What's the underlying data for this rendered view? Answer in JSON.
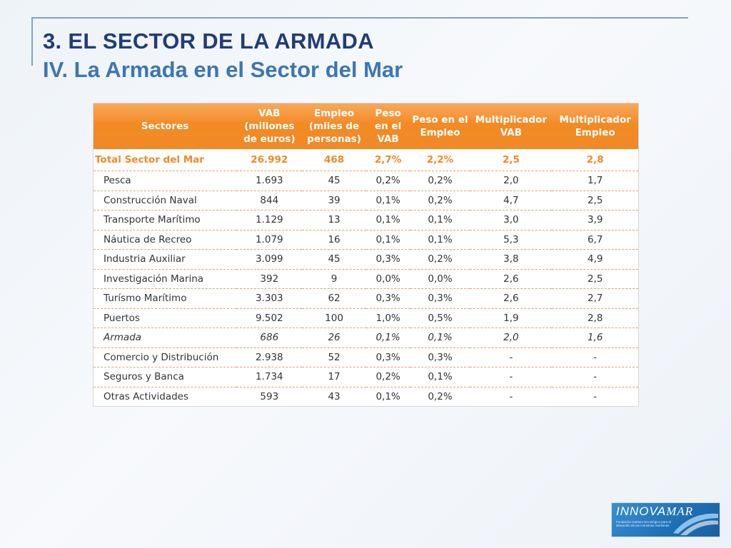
{
  "slide": {
    "title": "3. EL SECTOR DE LA ARMADA",
    "subtitle": "IV. La Armada en el Sector del Mar"
  },
  "table": {
    "headers": [
      "Sectores",
      "VAB (millones de euros)",
      "Empleo (miles de personas)",
      "Peso en el VAB",
      "Peso en el Empleo",
      "Multiplicador VAB",
      "Multiplicador Empleo"
    ],
    "total": [
      "Total Sector del Mar",
      "26.992",
      "468",
      "2,7%",
      "2,2%",
      "2,5",
      "2,8"
    ],
    "rows": [
      [
        "Pesca",
        "1.693",
        "45",
        "0,2%",
        "0,2%",
        "2,0",
        "1,7"
      ],
      [
        "Construcción Naval",
        "844",
        "39",
        "0,1%",
        "0,2%",
        "4,7",
        "2,5"
      ],
      [
        "Transporte Marítimo",
        "1.129",
        "13",
        "0,1%",
        "0,1%",
        "3,0",
        "3,9"
      ],
      [
        "Náutica de Recreo",
        "1.079",
        "16",
        "0,1%",
        "0,1%",
        "5,3",
        "6,7"
      ],
      [
        "Industria Auxiliar",
        "3.099",
        "45",
        "0,3%",
        "0,2%",
        "3,8",
        "4,9"
      ],
      [
        "Investigación Marina",
        "392",
        "9",
        "0,0%",
        "0,0%",
        "2,6",
        "2,5"
      ],
      [
        "Turísmo Marítimo",
        "3.303",
        "62",
        "0,3%",
        "0,3%",
        "2,6",
        "2,7"
      ],
      [
        "Puertos",
        "9.502",
        "100",
        "1,0%",
        "0,5%",
        "1,9",
        "2,8"
      ],
      [
        "Armada",
        "686",
        "26",
        "0,1%",
        "0,1%",
        "2,0",
        "1,6"
      ],
      [
        "Comercio y Distribución",
        "2.938",
        "52",
        "0,3%",
        "0,3%",
        "-",
        "-"
      ],
      [
        "Seguros y Banca",
        "1.734",
        "17",
        "0,2%",
        "0,1%",
        "-",
        "-"
      ],
      [
        "Otras Actividades",
        "593",
        "43",
        "0,1%",
        "0,2%",
        "-",
        "-"
      ]
    ],
    "italic_row": "Armada"
  },
  "logo": {
    "name": "INNOVAMAR",
    "tagline": "Fundación Instituto tecnológico para el desarrollo de las industrias marítimas"
  },
  "colors": {
    "title": "#1f3d7a",
    "subtitle": "#3d76b4",
    "header_orange": "#f08a26",
    "total_text": "#f08a26"
  }
}
